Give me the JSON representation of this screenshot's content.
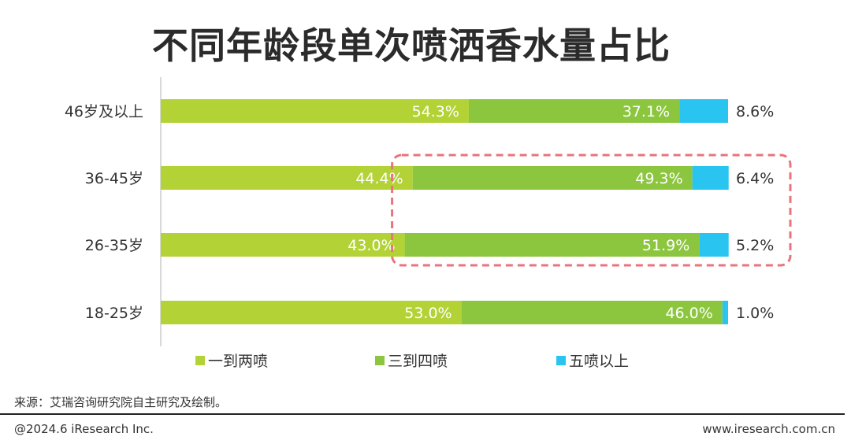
{
  "chart_data": {
    "type": "bar",
    "orientation": "horizontal",
    "stacked": true,
    "title": "不同年龄段单次喷洒香水量占比",
    "categories": [
      "46岁及以上",
      "36-45岁",
      "26-35岁",
      "18-25岁"
    ],
    "series": [
      {
        "name": "一到两喷",
        "color": "#b3d235",
        "values": [
          54.3,
          44.4,
          43.0,
          53.0
        ],
        "labels": [
          "54.3%",
          "44.4%",
          "43.0%",
          "53.0%"
        ]
      },
      {
        "name": "三到四喷",
        "color": "#8cc63f",
        "values": [
          37.1,
          49.3,
          51.9,
          46.0
        ],
        "labels": [
          "37.1%",
          "49.3%",
          "51.9%",
          "46.0%"
        ]
      },
      {
        "name": "五喷以上",
        "color": "#29c5f0",
        "values": [
          8.6,
          6.4,
          5.2,
          1.0
        ],
        "labels": [
          "8.6%",
          "6.4%",
          "5.2%",
          "1.0%"
        ]
      }
    ],
    "xlim": [
      0,
      100
    ],
    "grid": false,
    "legend_position": "bottom",
    "highlight": {
      "categories": [
        "36-45岁",
        "26-35岁"
      ],
      "series": [
        "三到四喷",
        "五喷以上"
      ],
      "style": "dashed",
      "color": "#e8747c"
    }
  },
  "footer": {
    "source": "来源：艾瑞咨询研究院自主研究及绘制。",
    "copyright": "@2024.6 iResearch Inc.",
    "website": "www.iresearch.com.cn"
  }
}
